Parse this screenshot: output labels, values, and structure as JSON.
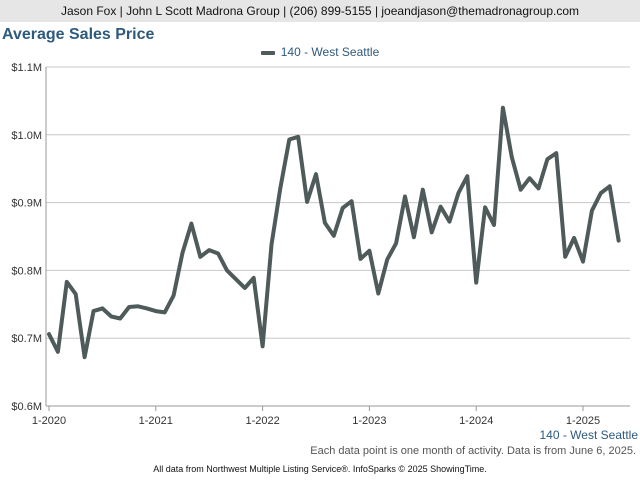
{
  "header": {
    "text": "Jason Fox | John L Scott Madrona Group | (206) 899-5155 | joeandjason@themadronagroup.com"
  },
  "chart_data": {
    "type": "line",
    "title": "Average Sales Price",
    "legend_position": "top-center",
    "grid": true,
    "ylim": [
      0.6,
      1.1
    ],
    "y_ticks": [
      0.6,
      0.7,
      0.8,
      0.9,
      1.0,
      1.1
    ],
    "y_tick_labels": [
      "$0.6M",
      "$0.7M",
      "$0.8M",
      "$0.9M",
      "$1.0M",
      "$1.1M"
    ],
    "x_ticks": [
      "2020-01",
      "2021-01",
      "2022-01",
      "2023-01",
      "2024-01",
      "2025-01"
    ],
    "x_tick_labels": [
      "1-2020",
      "1-2021",
      "1-2022",
      "1-2023",
      "1-2024",
      "1-2025"
    ],
    "x": [
      "2020-01",
      "2020-02",
      "2020-03",
      "2020-04",
      "2020-05",
      "2020-06",
      "2020-07",
      "2020-08",
      "2020-09",
      "2020-10",
      "2020-11",
      "2020-12",
      "2021-01",
      "2021-02",
      "2021-03",
      "2021-04",
      "2021-05",
      "2021-06",
      "2021-07",
      "2021-08",
      "2021-09",
      "2021-10",
      "2021-11",
      "2021-12",
      "2022-01",
      "2022-02",
      "2022-03",
      "2022-04",
      "2022-05",
      "2022-06",
      "2022-07",
      "2022-08",
      "2022-09",
      "2022-10",
      "2022-11",
      "2022-12",
      "2023-01",
      "2023-02",
      "2023-03",
      "2023-04",
      "2023-05",
      "2023-06",
      "2023-07",
      "2023-08",
      "2023-09",
      "2023-10",
      "2023-11",
      "2023-12",
      "2024-01",
      "2024-02",
      "2024-03",
      "2024-04",
      "2024-05",
      "2024-06",
      "2024-07",
      "2024-08",
      "2024-09",
      "2024-10",
      "2024-11",
      "2024-12",
      "2025-01",
      "2025-02",
      "2025-03",
      "2025-04",
      "2025-05"
    ],
    "series": [
      {
        "name": "140 - West Seattle",
        "color": "#4f5a5a",
        "values": [
          0.706,
          0.68,
          0.783,
          0.765,
          0.672,
          0.74,
          0.744,
          0.732,
          0.729,
          0.746,
          0.747,
          0.744,
          0.74,
          0.738,
          0.763,
          0.826,
          0.869,
          0.82,
          0.83,
          0.825,
          0.8,
          0.787,
          0.774,
          0.789,
          0.688,
          0.838,
          0.922,
          0.993,
          0.997,
          0.901,
          0.942,
          0.87,
          0.851,
          0.892,
          0.902,
          0.817,
          0.829,
          0.766,
          0.816,
          0.84,
          0.909,
          0.849,
          0.919,
          0.856,
          0.894,
          0.872,
          0.914,
          0.939,
          0.782,
          0.893,
          0.867,
          1.04,
          0.967,
          0.919,
          0.936,
          0.921,
          0.964,
          0.973,
          0.82,
          0.848,
          0.813,
          0.888,
          0.914,
          0.924,
          0.844
        ]
      }
    ]
  },
  "footnote": "Each data point is one month of activity. Data is from June 6, 2025.",
  "source": "All data from Northwest Multiple Listing Service®. InfoSparks © 2025 ShowingTime."
}
